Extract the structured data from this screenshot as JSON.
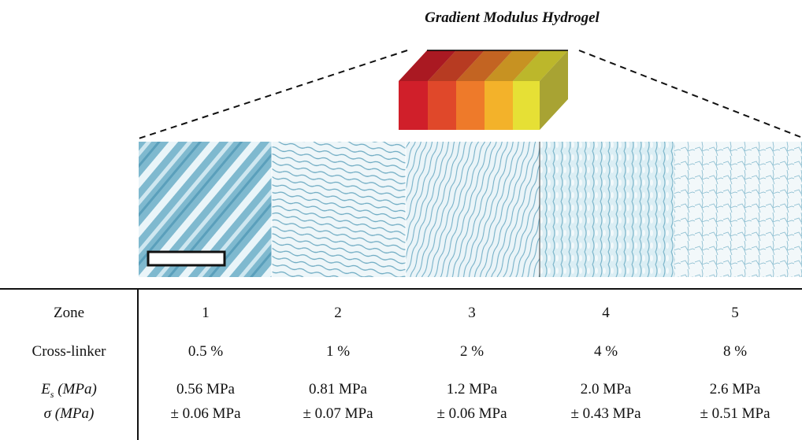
{
  "figure_title": "Gradient Modulus Hydrogel",
  "gradient_block": {
    "zone_colors": [
      "#d01f2a",
      "#e0482a",
      "#ee7a2a",
      "#f3b22a",
      "#e6e035"
    ]
  },
  "micrographs": {
    "count": 5,
    "tint": "#8fc3d6",
    "scale_bar": "present"
  },
  "table": {
    "row_labels": {
      "zone": "Zone",
      "crosslinker": "Cross-linker",
      "es_symbol": "E",
      "es_subscript": "s",
      "es_unit": " (MPa)",
      "sigma": "σ (MPa)"
    },
    "zones": [
      {
        "zone": "1",
        "crosslinker": "0.5 %",
        "es": "0.56 MPa",
        "sigma": "± 0.06 MPa"
      },
      {
        "zone": "2",
        "crosslinker": "1 %",
        "es": "0.81 MPa",
        "sigma": "± 0.07 MPa"
      },
      {
        "zone": "3",
        "crosslinker": "2 %",
        "es": "1.2 MPa",
        "sigma": "± 0.06 MPa"
      },
      {
        "zone": "4",
        "crosslinker": "4 %",
        "es": "2.0 MPa",
        "sigma": "± 0.43 MPa"
      },
      {
        "zone": "5",
        "crosslinker": "8 %",
        "es": "2.6 MPa",
        "sigma": "± 0.51 MPa"
      }
    ]
  }
}
